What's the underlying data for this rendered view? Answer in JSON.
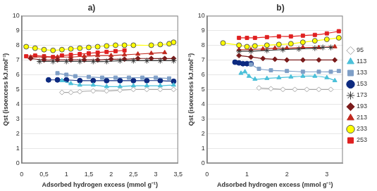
{
  "chart_data": [
    {
      "type": "scatter",
      "title": "a)",
      "x_label": "Adsorbed hydrogen excess (mmol g⁻¹)",
      "y_label": "Qst (isoexcess kJ.mol⁻¹)",
      "xlim": [
        0,
        3.5
      ],
      "xticks": [
        0,
        {
          "value": 0.5,
          "label": "0,5"
        },
        1,
        {
          "value": 1.5,
          "label": "1,5"
        },
        2,
        {
          "value": 2.5,
          "label": "2,5"
        },
        3,
        {
          "value": 3.5,
          "label": "3,5"
        }
      ],
      "ylim": [
        0,
        10
      ],
      "yticks": [
        0,
        1,
        2,
        3,
        4,
        5,
        6,
        7,
        8,
        9,
        10
      ],
      "grid": true,
      "series": [
        {
          "name": "95",
          "color": "#a6a6a6",
          "marker": "diamond",
          "line_style": "solid",
          "x": [
            0.9,
            1.1,
            1.3,
            1.6,
            1.9,
            2.2,
            2.5,
            2.8,
            3.1,
            3.4
          ],
          "values": [
            4.8,
            4.8,
            4.85,
            4.9,
            4.9,
            4.95,
            5.0,
            5.0,
            5.0,
            5.0
          ]
        },
        {
          "name": "113",
          "color": "#4bc0d9",
          "marker": "triangle",
          "line_style": "solid",
          "x": [
            0.9,
            1.1,
            1.3,
            1.6,
            1.9,
            2.2,
            2.5,
            2.8,
            3.1,
            3.4
          ],
          "values": [
            5.6,
            5.4,
            5.3,
            5.3,
            5.2,
            5.2,
            5.25,
            5.25,
            5.25,
            5.3
          ]
        },
        {
          "name": "133",
          "color": "#7f9fc7",
          "marker": "square",
          "line_style": "solid",
          "x": [
            0.8,
            1.0,
            1.2,
            1.5,
            1.8,
            2.1,
            2.4,
            2.7,
            3.0,
            3.3
          ],
          "values": [
            6.1,
            6.0,
            5.9,
            5.85,
            5.8,
            5.8,
            5.8,
            5.8,
            5.8,
            5.75
          ]
        },
        {
          "name": "153",
          "color": "#0d2a80",
          "marker": "circle",
          "line_style": "solid",
          "x": [
            0.6,
            0.8,
            1.0,
            1.3,
            1.6,
            1.9,
            2.2,
            2.5,
            2.8,
            3.1,
            3.4
          ],
          "values": [
            5.65,
            5.65,
            5.65,
            5.6,
            5.6,
            5.6,
            5.6,
            5.6,
            5.6,
            5.6,
            5.55
          ]
        },
        {
          "name": "173",
          "color": "#333333",
          "marker": "star",
          "line_style": "solid",
          "x": [
            0.4,
            0.7,
            1.0,
            1.3,
            1.6,
            1.9,
            2.2,
            2.5,
            2.8,
            3.1,
            3.4
          ],
          "values": [
            6.9,
            6.9,
            6.9,
            6.9,
            6.9,
            6.9,
            6.95,
            6.95,
            6.95,
            6.95,
            6.95
          ]
        },
        {
          "name": "193",
          "color": "#7b1c1c",
          "marker": "diamond",
          "line_style": "solid",
          "x": [
            0.2,
            0.5,
            0.8,
            1.1,
            1.4,
            1.7,
            2.0,
            2.3,
            2.6,
            2.9,
            3.2,
            3.4
          ],
          "values": [
            7.1,
            7.0,
            7.0,
            7.0,
            7.0,
            7.0,
            7.05,
            7.05,
            7.1,
            7.1,
            7.1,
            7.1
          ]
        },
        {
          "name": "213",
          "color": "#c0281e",
          "marker": "triangle",
          "line_style": "solid",
          "x": [
            0.2,
            0.5,
            0.8,
            1.1,
            1.4,
            1.7,
            2.0,
            2.3,
            2.6,
            2.9,
            3.2
          ],
          "values": [
            7.2,
            7.2,
            7.2,
            7.2,
            7.25,
            7.3,
            7.3,
            7.35,
            7.4,
            7.45,
            7.5
          ]
        },
        {
          "name": "233",
          "color": "#ffff00",
          "marker": "circle",
          "line_style": "solid",
          "x": [
            0.1,
            0.3,
            0.5,
            0.7,
            0.9,
            1.1,
            1.3,
            1.5,
            1.7,
            1.9,
            2.1,
            2.3,
            2.5,
            2.9,
            3.1,
            3.3,
            3.4
          ],
          "values": [
            7.9,
            7.8,
            7.7,
            7.65,
            7.7,
            7.75,
            7.8,
            7.85,
            7.9,
            7.95,
            8.0,
            8.0,
            8.0,
            8.0,
            8.05,
            8.1,
            8.2
          ]
        },
        {
          "name": "253",
          "color": "#e02020",
          "marker": "square",
          "line_style": "solid",
          "x": [
            0.1,
            0.3,
            0.5,
            0.7,
            0.9,
            1.1,
            1.3,
            1.5,
            1.7,
            1.9,
            2.1,
            2.3
          ],
          "values": [
            7.25,
            7.3,
            7.25,
            7.2,
            7.3,
            7.35,
            7.4,
            7.45,
            7.5,
            7.55,
            7.6,
            7.65
          ]
        }
      ]
    },
    {
      "type": "scatter",
      "title": "b)",
      "x_label": "Adsorbed hydrogen excess (mmol g⁻¹)",
      "y_label": "Qst (isoexcess kJ.mol⁻¹)",
      "xlim": [
        0,
        3.4
      ],
      "xticks": [
        0,
        1,
        2,
        3
      ],
      "ylim": [
        0,
        10
      ],
      "yticks": [
        0,
        1,
        2,
        3,
        4,
        5,
        6,
        7,
        8,
        9,
        10
      ],
      "grid": true,
      "legend": "right",
      "series": [
        {
          "name": "95",
          "color": "#a6a6a6",
          "marker": "diamond",
          "line_style": "solid",
          "x": [
            1.3,
            1.6,
            1.9,
            2.2,
            2.5,
            2.8,
            3.1
          ],
          "values": [
            5.1,
            5.05,
            5.0,
            5.0,
            5.0,
            5.0,
            5.0
          ]
        },
        {
          "name": "113",
          "color": "#4bc0d9",
          "marker": "triangle",
          "line_style": "solid",
          "x": [
            0.85,
            0.95,
            1.05,
            1.2,
            1.5,
            1.8,
            2.1,
            2.4,
            2.7,
            3.0,
            3.2
          ],
          "values": [
            6.1,
            6.2,
            5.9,
            5.7,
            5.75,
            5.8,
            5.85,
            5.9,
            5.9,
            5.8,
            5.6
          ]
        },
        {
          "name": "133",
          "color": "#7f9fc7",
          "marker": "square",
          "line_style": "solid",
          "x": [
            1.1,
            1.3,
            1.6,
            2.0,
            2.4,
            2.8,
            3.1,
            3.3
          ],
          "values": [
            6.7,
            6.4,
            6.3,
            6.25,
            6.2,
            6.2,
            6.2,
            6.25
          ]
        },
        {
          "name": "153",
          "color": "#0d2a80",
          "marker": "circle",
          "line_style": "solid",
          "x": [
            0.7,
            0.8,
            0.9,
            1.0,
            1.1
          ],
          "values": [
            6.85,
            6.8,
            6.75,
            6.75,
            6.75
          ]
        },
        {
          "name": "173",
          "color": "#333333",
          "marker": "star",
          "line_style": "solid",
          "x": [
            0.8,
            1.1,
            1.5,
            1.9,
            2.3,
            2.7,
            2.9,
            3.1
          ],
          "values": [
            7.6,
            7.6,
            7.65,
            7.7,
            7.75,
            7.8,
            7.85,
            7.85
          ]
        },
        {
          "name": "193",
          "color": "#7b1c1c",
          "marker": "diamond",
          "line_style": "solid",
          "x": [
            0.8,
            1.1,
            1.4,
            1.7,
            2.0,
            2.4,
            2.8,
            3.2
          ],
          "values": [
            7.3,
            7.2,
            7.1,
            7.05,
            7.0,
            7.0,
            7.0,
            7.0
          ]
        },
        {
          "name": "213",
          "color": "#c0281e",
          "marker": "triangle",
          "line_style": "solid",
          "x": [
            0.8,
            1.1,
            1.4,
            1.7,
            2.0,
            2.4,
            2.8,
            3.2
          ],
          "values": [
            7.7,
            7.7,
            7.75,
            7.8,
            7.8,
            7.85,
            7.85,
            7.9
          ]
        },
        {
          "name": "233",
          "color": "#ffff00",
          "marker": "circle",
          "line_style": "solid",
          "x": [
            0.4,
            0.8,
            1.0,
            1.2,
            1.5,
            1.8,
            2.1,
            2.4,
            2.7,
            3.0,
            3.3
          ],
          "values": [
            8.15,
            8.0,
            7.9,
            7.95,
            8.0,
            8.05,
            8.1,
            8.2,
            8.3,
            8.4,
            8.5
          ]
        },
        {
          "name": "253",
          "color": "#e02020",
          "marker": "square",
          "line_style": "solid",
          "x": [
            0.8,
            1.0,
            1.2,
            1.5,
            1.8,
            2.1,
            2.4,
            2.7,
            3.0,
            3.3
          ],
          "values": [
            8.5,
            8.5,
            8.5,
            8.55,
            8.6,
            8.6,
            8.65,
            8.7,
            8.8,
            8.95
          ]
        }
      ]
    }
  ]
}
